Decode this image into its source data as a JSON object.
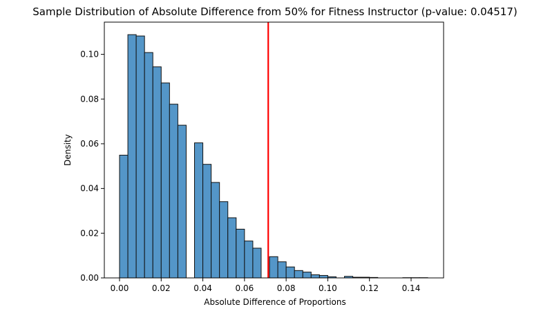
{
  "chart_data": {
    "type": "bar",
    "title": "Sample Distribution of Absolute Difference from 50% for Fitness Instructor (p-value: 0.04517)",
    "xlabel": "Absolute Difference of Proportions",
    "ylabel": "Density",
    "xlim": [
      -0.0073,
      0.1556
    ],
    "ylim": [
      0,
      0.1144
    ],
    "x_ticks": [
      0.0,
      0.02,
      0.04,
      0.06,
      0.08,
      0.1,
      0.12,
      0.14
    ],
    "x_tick_labels": [
      "0.00",
      "0.02",
      "0.04",
      "0.06",
      "0.08",
      "0.10",
      "0.12",
      "0.14"
    ],
    "y_ticks": [
      0.0,
      0.02,
      0.04,
      0.06,
      0.08,
      0.1
    ],
    "y_tick_labels": [
      "0.00",
      "0.02",
      "0.04",
      "0.06",
      "0.08",
      "0.10"
    ],
    "grid": false,
    "bin_width": 0.004,
    "bin_start": 0.0,
    "values": [
      0.0549,
      0.1088,
      0.1082,
      0.1008,
      0.0944,
      0.0872,
      0.0777,
      0.0683,
      0.0,
      0.0604,
      0.0508,
      0.0427,
      0.0341,
      0.0269,
      0.0218,
      0.0165,
      0.0133,
      0.0,
      0.0095,
      0.0072,
      0.0049,
      0.0033,
      0.0026,
      0.0014,
      0.0011,
      0.0005,
      0.0,
      0.0007,
      0.0003,
      0.0003,
      0.0002,
      0.0,
      0.0,
      0.0,
      0.0001,
      0.0001,
      0.0001
    ],
    "observed_value": 0.0714,
    "colors": {
      "bar_fill": "#5496c8",
      "bar_edge": "#111111",
      "observed_line": "#ff0000"
    }
  }
}
